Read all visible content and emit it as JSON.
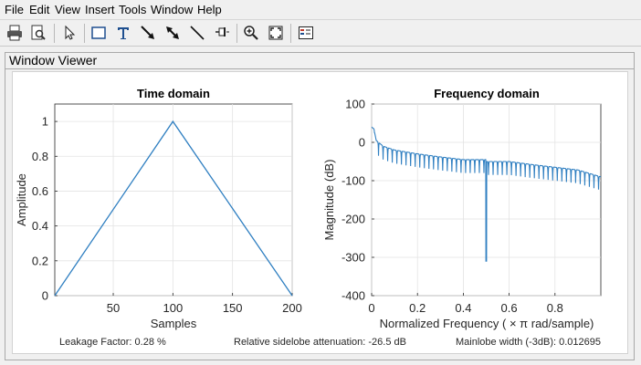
{
  "menu": [
    "File",
    "Edit",
    "View",
    "Insert",
    "Tools",
    "Window",
    "Help"
  ],
  "toolbar": {
    "buttons": [
      "print-icon",
      "print-preview-icon",
      "edit-plot-arrow-icon",
      "insert-rectangle-icon",
      "insert-text-icon",
      "insert-arrow-icon",
      "insert-double-arrow-icon",
      "insert-line-icon",
      "pin-icon",
      "zoom-in-icon",
      "fit-to-view-icon",
      "legend-icon"
    ]
  },
  "panel": {
    "title": "Window Viewer"
  },
  "time_plot": {
    "title": "Time domain",
    "xlabel": "Samples",
    "ylabel": "Amplitude",
    "xticks": [
      "50",
      "100",
      "150",
      "200"
    ],
    "yticks": [
      "0",
      "0.2",
      "0.4",
      "0.6",
      "0.8",
      "1"
    ],
    "line_color": "#2f7fc1"
  },
  "freq_plot": {
    "title": "Frequency domain",
    "xlabel": "Normalized Frequency  ( × π rad/sample)",
    "ylabel": "Magnitude (dB)",
    "xticks": [
      "0",
      "0.2",
      "0.4",
      "0.6",
      "0.8"
    ],
    "yticks": [
      "100",
      "0",
      "-100",
      "-200",
      "-300",
      "-400"
    ],
    "line_color": "#2f7fc1"
  },
  "status": {
    "leakage": "Leakage Factor: 0.28 %",
    "sidelobe": "Relative sidelobe attenuation: -26.5 dB",
    "mainlobe": "Mainlobe width (-3dB): 0.012695"
  },
  "chart_data": [
    {
      "type": "line",
      "title": "Time domain",
      "xlabel": "Samples",
      "ylabel": "Amplitude",
      "xlim": [
        1,
        200
      ],
      "ylim": [
        0,
        1.1
      ],
      "grid": true,
      "x": [
        1,
        100,
        200
      ],
      "series": [
        {
          "values": [
            0,
            1,
            0
          ]
        }
      ]
    },
    {
      "type": "line",
      "title": "Frequency domain",
      "xlabel": "Normalized Frequency  ( × π rad/sample)",
      "ylabel": "Magnitude (dB)",
      "xlim": [
        0,
        1
      ],
      "ylim": [
        -400,
        100
      ],
      "grid": true,
      "x": [
        0,
        0.01,
        0.02,
        0.05,
        0.1,
        0.2,
        0.3,
        0.4,
        0.5,
        0.6,
        0.7,
        0.8,
        0.9,
        1.0
      ],
      "series": [
        {
          "values": [
            40,
            35,
            5,
            -10,
            -20,
            -30,
            -38,
            -45,
            -310,
            -50,
            -58,
            -65,
            -72,
            -90
          ]
        }
      ]
    }
  ]
}
